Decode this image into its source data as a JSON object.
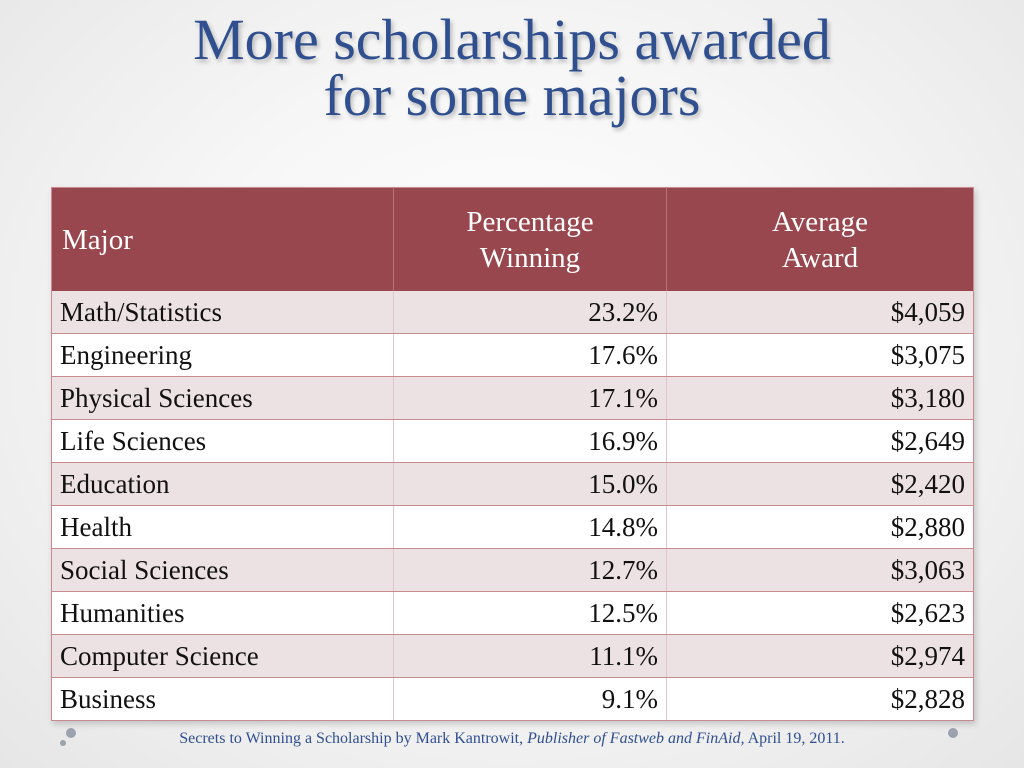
{
  "slide": {
    "title_line1": "More scholarships awarded",
    "title_line2": "for some majors"
  },
  "table": {
    "headers": {
      "major": "Major",
      "pct_line1": "Percentage",
      "pct_line2": "Winning",
      "avg_line1": "Average",
      "avg_line2": "Award"
    },
    "rows": [
      {
        "major": "Math/Statistics",
        "pct": "23.2%",
        "award": "$4,059"
      },
      {
        "major": "Engineering",
        "pct": "17.6%",
        "award": "$3,075"
      },
      {
        "major": "Physical Sciences",
        "pct": "17.1%",
        "award": "$3,180"
      },
      {
        "major": "Life Sciences",
        "pct": "16.9%",
        "award": "$2,649"
      },
      {
        "major": "Education",
        "pct": "15.0%",
        "award": "$2,420"
      },
      {
        "major": "Health",
        "pct": "14.8%",
        "award": "$2,880"
      },
      {
        "major": "Social Sciences",
        "pct": "12.7%",
        "award": "$3,063"
      },
      {
        "major": "Humanities",
        "pct": "12.5%",
        "award": "$2,623"
      },
      {
        "major": "Computer Science",
        "pct": "11.1%",
        "award": "$2,974"
      },
      {
        "major": "Business",
        "pct": "9.1%",
        "award": "$2,828"
      }
    ]
  },
  "footer": {
    "source_prefix": "Secrets to Winning a Scholarship by Mark Kantrowit, ",
    "source_italic": "Publisher of Fastweb and FinAid,",
    "source_suffix": " April 19, 2011."
  },
  "colors": {
    "title": "#2f4f8f",
    "header_bg": "#98474e",
    "stripe": "#ece2e3"
  }
}
